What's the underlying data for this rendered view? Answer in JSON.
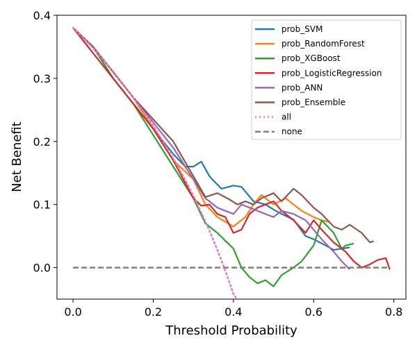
{
  "chart_data": {
    "type": "line",
    "xlabel": "Threshold Probability",
    "ylabel": "Net Benefit",
    "xlim": [
      -0.04,
      0.83
    ],
    "ylim": [
      -0.05,
      0.4
    ],
    "xticks": [
      0.0,
      0.2,
      0.4,
      0.6,
      0.8
    ],
    "xtick_labels": [
      "0.0",
      "0.2",
      "0.4",
      "0.6",
      "0.8"
    ],
    "yticks": [
      0.0,
      0.1,
      0.2,
      0.3,
      0.4
    ],
    "ytick_labels": [
      "0.0",
      "0.1",
      "0.2",
      "0.3",
      "0.4"
    ],
    "grid": false,
    "legend_position": "top-right",
    "series": [
      {
        "name": "prob_SVM",
        "color": "#1f77b4",
        "style": "solid",
        "x": [
          0.0,
          0.05,
          0.1,
          0.15,
          0.2,
          0.25,
          0.28,
          0.3,
          0.32,
          0.34,
          0.35,
          0.37,
          0.4,
          0.42,
          0.45,
          0.48,
          0.5,
          0.52,
          0.55,
          0.58,
          0.6,
          0.63,
          0.65,
          0.67,
          0.69
        ],
        "y": [
          0.38,
          0.35,
          0.3,
          0.26,
          0.22,
          0.18,
          0.16,
          0.16,
          0.168,
          0.145,
          0.138,
          0.125,
          0.13,
          0.128,
          0.105,
          0.1,
          0.092,
          0.085,
          0.076,
          0.05,
          0.045,
          0.035,
          0.028,
          0.03,
          0.032
        ]
      },
      {
        "name": "prob_RandomForest",
        "color": "#ff7f0e",
        "style": "solid",
        "x": [
          0.0,
          0.05,
          0.1,
          0.15,
          0.2,
          0.25,
          0.3,
          0.33,
          0.36,
          0.4,
          0.43,
          0.45,
          0.47,
          0.5,
          0.53,
          0.55,
          0.57,
          0.6,
          0.62,
          0.64
        ],
        "y": [
          0.38,
          0.35,
          0.31,
          0.27,
          0.22,
          0.17,
          0.14,
          0.1,
          0.08,
          0.065,
          0.08,
          0.1,
          0.115,
          0.1,
          0.11,
          0.1,
          0.09,
          0.08,
          0.075,
          0.072
        ]
      },
      {
        "name": "prob_XGBoost",
        "color": "#2ca02c",
        "style": "solid",
        "x": [
          0.0,
          0.05,
          0.1,
          0.15,
          0.2,
          0.25,
          0.28,
          0.3,
          0.33,
          0.36,
          0.4,
          0.42,
          0.44,
          0.46,
          0.48,
          0.5,
          0.52,
          0.55,
          0.57,
          0.6,
          0.62,
          0.65,
          0.67,
          0.68,
          0.7
        ],
        "y": [
          0.38,
          0.35,
          0.3,
          0.26,
          0.21,
          0.16,
          0.13,
          0.11,
          0.07,
          0.055,
          0.03,
          0.0,
          -0.015,
          -0.025,
          -0.02,
          -0.03,
          -0.012,
          0.0,
          0.01,
          0.035,
          0.075,
          0.055,
          0.03,
          0.035,
          0.038
        ]
      },
      {
        "name": "prob_LogisticRegression",
        "color": "#d62728",
        "style": "solid",
        "x": [
          0.0,
          0.05,
          0.1,
          0.15,
          0.2,
          0.25,
          0.3,
          0.32,
          0.34,
          0.36,
          0.38,
          0.4,
          0.42,
          0.44,
          0.46,
          0.48,
          0.5,
          0.52,
          0.55,
          0.58,
          0.6,
          0.62,
          0.65,
          0.68,
          0.7,
          0.72,
          0.74,
          0.76,
          0.78,
          0.79
        ],
        "y": [
          0.38,
          0.34,
          0.3,
          0.26,
          0.22,
          0.17,
          0.11,
          0.098,
          0.1,
          0.085,
          0.08,
          0.055,
          0.06,
          0.085,
          0.095,
          0.1,
          0.105,
          0.09,
          0.075,
          0.055,
          0.075,
          0.06,
          0.04,
          0.025,
          0.01,
          0.0,
          0.005,
          0.012,
          0.015,
          -0.003
        ]
      },
      {
        "name": "prob_ANN",
        "color": "#9467bd",
        "style": "solid",
        "x": [
          0.0,
          0.05,
          0.1,
          0.15,
          0.2,
          0.25,
          0.3,
          0.33,
          0.36,
          0.38,
          0.4,
          0.42,
          0.44,
          0.46,
          0.48,
          0.5,
          0.52,
          0.55,
          0.58,
          0.6,
          0.62,
          0.65,
          0.67,
          0.69
        ],
        "y": [
          0.38,
          0.35,
          0.31,
          0.27,
          0.23,
          0.19,
          0.14,
          0.11,
          0.095,
          0.09,
          0.085,
          0.1,
          0.095,
          0.09,
          0.085,
          0.08,
          0.09,
          0.085,
          0.075,
          0.06,
          0.045,
          0.025,
          0.01,
          -0.003
        ]
      },
      {
        "name": "prob_Ensemble",
        "color": "#8c564b",
        "style": "solid",
        "x": [
          0.0,
          0.05,
          0.1,
          0.15,
          0.2,
          0.25,
          0.3,
          0.33,
          0.36,
          0.39,
          0.41,
          0.43,
          0.45,
          0.47,
          0.5,
          0.52,
          0.55,
          0.57,
          0.6,
          0.62,
          0.65,
          0.67,
          0.69,
          0.72,
          0.74,
          0.75
        ],
        "y": [
          0.38,
          0.35,
          0.31,
          0.27,
          0.235,
          0.2,
          0.145,
          0.112,
          0.118,
          0.108,
          0.1,
          0.105,
          0.1,
          0.11,
          0.118,
          0.105,
          0.125,
          0.115,
          0.095,
          0.085,
          0.065,
          0.06,
          0.068,
          0.055,
          0.04,
          0.042
        ]
      },
      {
        "name": "all",
        "color": "#e377c2",
        "style": "dotted",
        "x": [
          0.0,
          0.05,
          0.1,
          0.15,
          0.2,
          0.25,
          0.28,
          0.3,
          0.32,
          0.34,
          0.36,
          0.38,
          0.4,
          0.41
        ],
        "y": [
          0.38,
          0.348,
          0.311,
          0.27,
          0.225,
          0.173,
          0.139,
          0.114,
          0.087,
          0.059,
          0.028,
          -0.005,
          -0.042,
          -0.051
        ]
      },
      {
        "name": "none",
        "color": "#7f7f7f",
        "style": "dashed",
        "x": [
          0.0,
          0.79
        ],
        "y": [
          0.0,
          0.0
        ]
      }
    ]
  }
}
